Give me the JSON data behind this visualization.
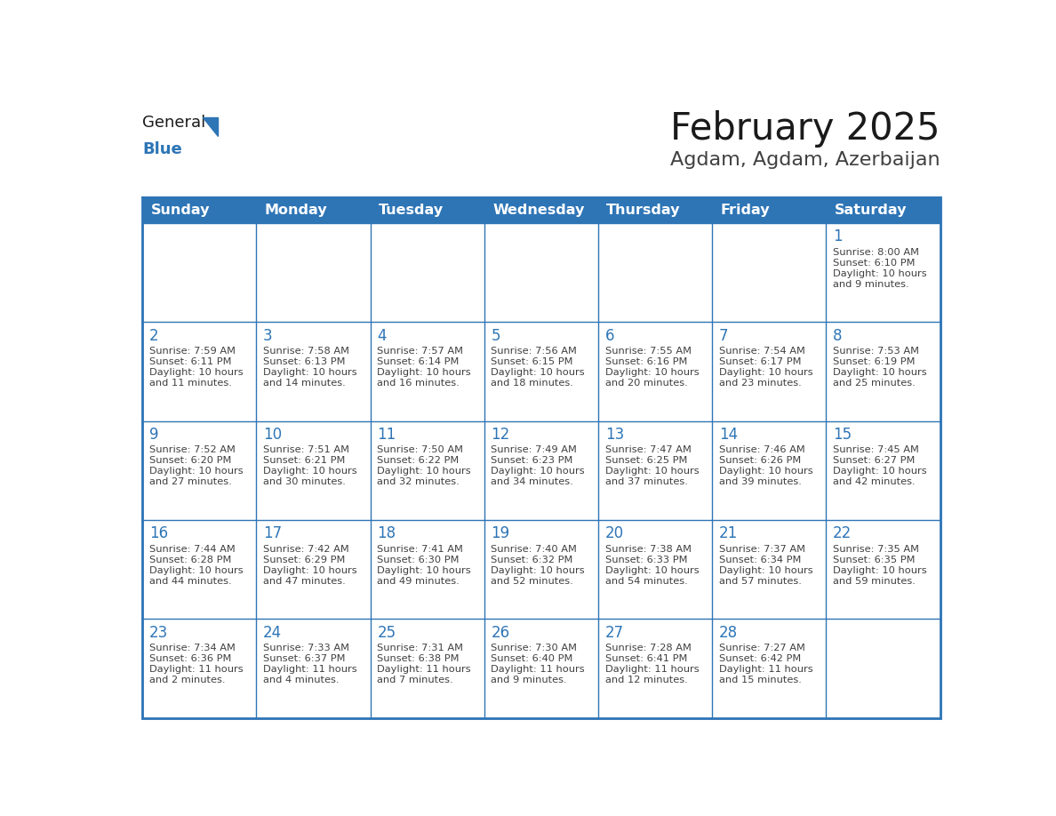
{
  "title": "February 2025",
  "subtitle": "Agdam, Agdam, Azerbaijan",
  "days_of_week": [
    "Sunday",
    "Monday",
    "Tuesday",
    "Wednesday",
    "Thursday",
    "Friday",
    "Saturday"
  ],
  "header_bg": "#2E75B6",
  "header_text_color": "#FFFFFF",
  "cell_bg": "#FFFFFF",
  "border_color": "#2E75B6",
  "day_number_color": "#2E75B6",
  "cell_text_color": "#404040",
  "title_color": "#1A1A1A",
  "subtitle_color": "#404040",
  "logo_general_color": "#1A1A1A",
  "logo_blue_color": "#2E75B6",
  "calendar_data": [
    [
      null,
      null,
      null,
      null,
      null,
      null,
      {
        "day": 1,
        "sunrise": "8:00 AM",
        "sunset": "6:10 PM",
        "daylight": "10 hours and 9 minutes."
      }
    ],
    [
      {
        "day": 2,
        "sunrise": "7:59 AM",
        "sunset": "6:11 PM",
        "daylight": "10 hours and 11 minutes."
      },
      {
        "day": 3,
        "sunrise": "7:58 AM",
        "sunset": "6:13 PM",
        "daylight": "10 hours and 14 minutes."
      },
      {
        "day": 4,
        "sunrise": "7:57 AM",
        "sunset": "6:14 PM",
        "daylight": "10 hours and 16 minutes."
      },
      {
        "day": 5,
        "sunrise": "7:56 AM",
        "sunset": "6:15 PM",
        "daylight": "10 hours and 18 minutes."
      },
      {
        "day": 6,
        "sunrise": "7:55 AM",
        "sunset": "6:16 PM",
        "daylight": "10 hours and 20 minutes."
      },
      {
        "day": 7,
        "sunrise": "7:54 AM",
        "sunset": "6:17 PM",
        "daylight": "10 hours and 23 minutes."
      },
      {
        "day": 8,
        "sunrise": "7:53 AM",
        "sunset": "6:19 PM",
        "daylight": "10 hours and 25 minutes."
      }
    ],
    [
      {
        "day": 9,
        "sunrise": "7:52 AM",
        "sunset": "6:20 PM",
        "daylight": "10 hours and 27 minutes."
      },
      {
        "day": 10,
        "sunrise": "7:51 AM",
        "sunset": "6:21 PM",
        "daylight": "10 hours and 30 minutes."
      },
      {
        "day": 11,
        "sunrise": "7:50 AM",
        "sunset": "6:22 PM",
        "daylight": "10 hours and 32 minutes."
      },
      {
        "day": 12,
        "sunrise": "7:49 AM",
        "sunset": "6:23 PM",
        "daylight": "10 hours and 34 minutes."
      },
      {
        "day": 13,
        "sunrise": "7:47 AM",
        "sunset": "6:25 PM",
        "daylight": "10 hours and 37 minutes."
      },
      {
        "day": 14,
        "sunrise": "7:46 AM",
        "sunset": "6:26 PM",
        "daylight": "10 hours and 39 minutes."
      },
      {
        "day": 15,
        "sunrise": "7:45 AM",
        "sunset": "6:27 PM",
        "daylight": "10 hours and 42 minutes."
      }
    ],
    [
      {
        "day": 16,
        "sunrise": "7:44 AM",
        "sunset": "6:28 PM",
        "daylight": "10 hours and 44 minutes."
      },
      {
        "day": 17,
        "sunrise": "7:42 AM",
        "sunset": "6:29 PM",
        "daylight": "10 hours and 47 minutes."
      },
      {
        "day": 18,
        "sunrise": "7:41 AM",
        "sunset": "6:30 PM",
        "daylight": "10 hours and 49 minutes."
      },
      {
        "day": 19,
        "sunrise": "7:40 AM",
        "sunset": "6:32 PM",
        "daylight": "10 hours and 52 minutes."
      },
      {
        "day": 20,
        "sunrise": "7:38 AM",
        "sunset": "6:33 PM",
        "daylight": "10 hours and 54 minutes."
      },
      {
        "day": 21,
        "sunrise": "7:37 AM",
        "sunset": "6:34 PM",
        "daylight": "10 hours and 57 minutes."
      },
      {
        "day": 22,
        "sunrise": "7:35 AM",
        "sunset": "6:35 PM",
        "daylight": "10 hours and 59 minutes."
      }
    ],
    [
      {
        "day": 23,
        "sunrise": "7:34 AM",
        "sunset": "6:36 PM",
        "daylight": "11 hours and 2 minutes."
      },
      {
        "day": 24,
        "sunrise": "7:33 AM",
        "sunset": "6:37 PM",
        "daylight": "11 hours and 4 minutes."
      },
      {
        "day": 25,
        "sunrise": "7:31 AM",
        "sunset": "6:38 PM",
        "daylight": "11 hours and 7 minutes."
      },
      {
        "day": 26,
        "sunrise": "7:30 AM",
        "sunset": "6:40 PM",
        "daylight": "11 hours and 9 minutes."
      },
      {
        "day": 27,
        "sunrise": "7:28 AM",
        "sunset": "6:41 PM",
        "daylight": "11 hours and 12 minutes."
      },
      {
        "day": 28,
        "sunrise": "7:27 AM",
        "sunset": "6:42 PM",
        "daylight": "11 hours and 15 minutes."
      },
      null
    ]
  ]
}
